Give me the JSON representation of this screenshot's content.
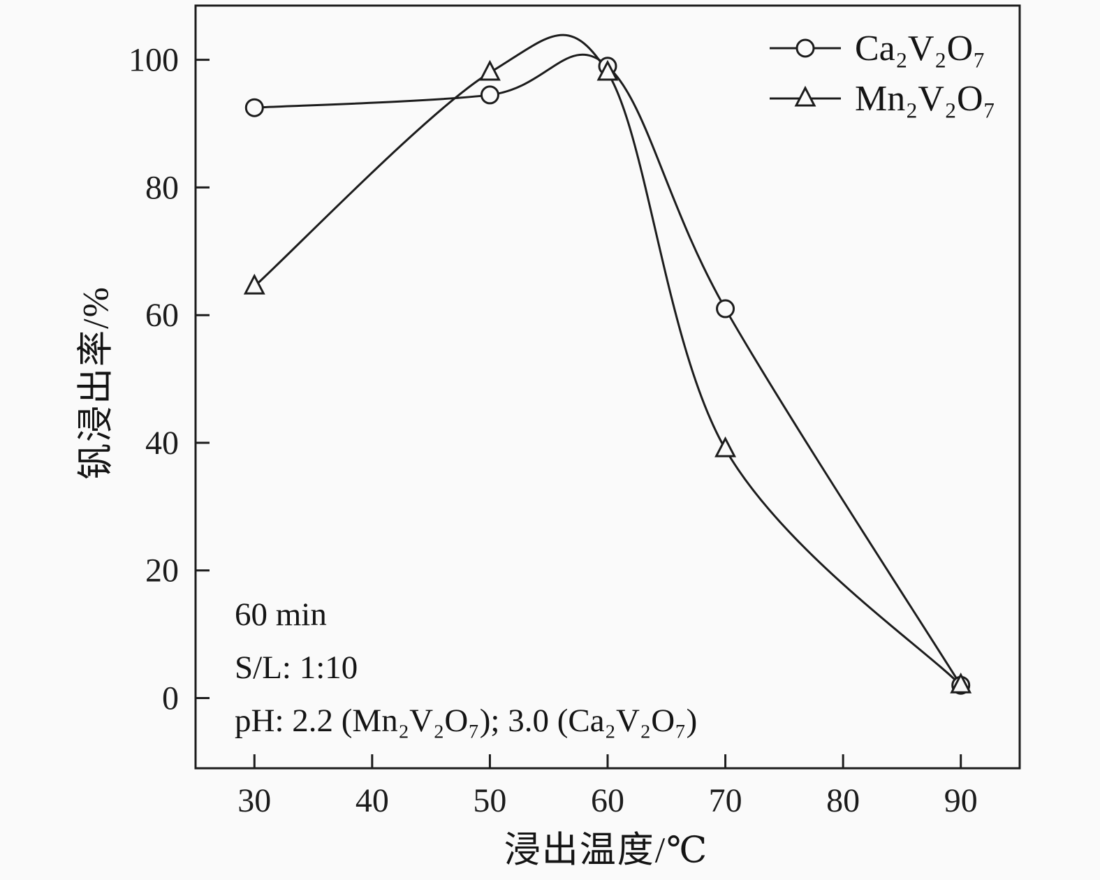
{
  "chart_data": {
    "type": "line",
    "x": [
      30,
      50,
      60,
      70,
      90
    ],
    "series": [
      {
        "name": "Ca₂V₂O₇",
        "marker": "circle",
        "values": [
          92.5,
          94.5,
          99,
          61,
          2
        ]
      },
      {
        "name": "Mn₂V₂O₇",
        "marker": "triangle",
        "values": [
          64.5,
          98,
          98,
          39,
          2
        ]
      }
    ],
    "x_ticks": [
      30,
      40,
      50,
      60,
      70,
      80,
      90
    ],
    "y_ticks": [
      0,
      20,
      40,
      60,
      80,
      100
    ],
    "xlim": [
      25,
      95
    ],
    "ylim": [
      -11,
      108.5
    ],
    "xlabel": "浸出温度/℃",
    "ylabel": "钒浸出率/%",
    "line_color": "#1c1c1c",
    "background": "#fafafa",
    "grid": false,
    "legend_position": "top-right",
    "annotations": [
      "60 min",
      "S/L: 1:10",
      "pH: 2.2 (Mn₂V₂O₇); 3.0 (Ca₂V₂O₇)"
    ]
  }
}
